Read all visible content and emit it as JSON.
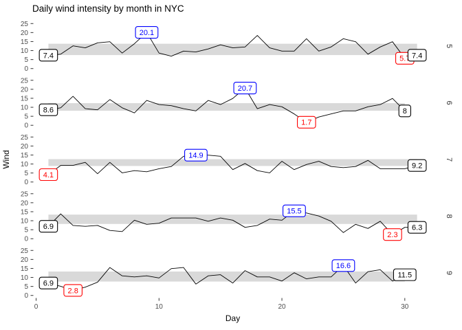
{
  "title": "Daily wind intensity by month in NYC",
  "x_axis": {
    "label": "Day",
    "ticks": [
      0,
      10,
      20,
      30
    ]
  },
  "y_axis": {
    "label": "Wind",
    "ticks": [
      0,
      5,
      10,
      15,
      20,
      25
    ]
  },
  "colors": {
    "line": "#000000",
    "band": "#d9d9d9",
    "axis_text": "#4d4d4d",
    "tick_mark": "#333333",
    "strip_text": "#333333",
    "label_first_last": "#000000",
    "label_max": "#0000ff",
    "label_min": "#ff0000",
    "label_fill": "#ffffff",
    "background": "#ffffff"
  },
  "chart_data": {
    "type": "line",
    "title": "Daily wind intensity by month in NYC",
    "xlabel": "Day",
    "ylabel": "Wind",
    "ylim": [
      0,
      25
    ],
    "x_ticks": [
      0,
      10,
      20,
      30
    ],
    "y_ticks": [
      25,
      20,
      15,
      10,
      5,
      0
    ],
    "grid": false,
    "facets": [
      {
        "strip": "5",
        "values": [
          7.4,
          8.0,
          12.6,
          11.5,
          14.3,
          14.9,
          8.6,
          13.8,
          20.1,
          8.6,
          6.9,
          9.7,
          9.2,
          10.9,
          13.2,
          11.5,
          12.0,
          18.4,
          11.5,
          9.7,
          9.7,
          16.6,
          9.7,
          12.0,
          16.6,
          14.9,
          8.0,
          12.0,
          14.9,
          5.7,
          7.4
        ],
        "band": {
          "ymin": 7.5,
          "ymax": 13.8
        },
        "labels": [
          {
            "text": "7.4",
            "day": 1,
            "value": 7.4,
            "role": "first",
            "color": "black"
          },
          {
            "text": "5.7",
            "day": 30,
            "value": 5.7,
            "role": "min",
            "color": "red"
          },
          {
            "text": "20.1",
            "day": 9,
            "value": 20.1,
            "role": "max",
            "color": "blue"
          },
          {
            "text": "7.4",
            "day": 31,
            "value": 7.4,
            "role": "last",
            "color": "black"
          }
        ]
      },
      {
        "strip": "6",
        "values": [
          8.6,
          9.7,
          16.1,
          9.2,
          8.6,
          14.3,
          9.7,
          6.9,
          13.8,
          11.5,
          10.9,
          9.2,
          8.0,
          13.8,
          11.5,
          14.9,
          20.7,
          9.2,
          11.5,
          10.3,
          6.3,
          1.7,
          4.6,
          6.3,
          8.0,
          8.0,
          10.3,
          11.5,
          14.9,
          8.0
        ],
        "band": {
          "ymin": 8.1,
          "ymax": 12.3
        },
        "labels": [
          {
            "text": "8.6",
            "day": 1,
            "value": 8.6,
            "role": "first",
            "color": "black"
          },
          {
            "text": "1.7",
            "day": 22,
            "value": 1.7,
            "role": "min",
            "color": "red"
          },
          {
            "text": "20.7",
            "day": 17,
            "value": 20.7,
            "role": "max",
            "color": "blue"
          },
          {
            "text": "8",
            "day": 30,
            "value": 8.0,
            "role": "last",
            "color": "black"
          }
        ]
      },
      {
        "strip": "7",
        "values": [
          4.1,
          9.2,
          9.2,
          10.9,
          4.6,
          10.9,
          5.1,
          6.3,
          5.7,
          7.4,
          8.6,
          14.3,
          14.9,
          14.9,
          14.3,
          6.9,
          10.3,
          6.3,
          5.1,
          11.5,
          6.9,
          9.7,
          11.5,
          8.6,
          8.0,
          8.6,
          12.0,
          7.4,
          7.4,
          7.4,
          9.2
        ],
        "band": {
          "ymin": 8.9,
          "ymax": 12.7
        },
        "labels": [
          {
            "text": "4.1",
            "day": 1,
            "value": 4.1,
            "role": "min",
            "color": "red"
          },
          {
            "text": "14.9",
            "day": 13,
            "value": 14.9,
            "role": "max",
            "color": "blue"
          },
          {
            "text": "9.2",
            "day": 31,
            "value": 9.2,
            "role": "last",
            "color": "black"
          }
        ]
      },
      {
        "strip": "8",
        "values": [
          6.9,
          13.8,
          7.4,
          6.9,
          7.4,
          4.6,
          4.0,
          10.3,
          8.0,
          8.6,
          11.5,
          11.5,
          11.5,
          9.7,
          11.5,
          10.3,
          6.3,
          7.4,
          10.9,
          10.3,
          15.5,
          14.3,
          12.6,
          9.7,
          3.4,
          8.0,
          5.7,
          9.7,
          2.3,
          6.3,
          6.3
        ],
        "band": {
          "ymin": 8.2,
          "ymax": 13.4
        },
        "labels": [
          {
            "text": "6.9",
            "day": 1,
            "value": 6.9,
            "role": "first",
            "color": "black"
          },
          {
            "text": "2.3",
            "day": 29,
            "value": 2.3,
            "role": "min",
            "color": "red"
          },
          {
            "text": "15.5",
            "day": 21,
            "value": 15.5,
            "role": "max",
            "color": "blue"
          },
          {
            "text": "6.3",
            "day": 31,
            "value": 6.3,
            "role": "last",
            "color": "black"
          }
        ]
      },
      {
        "strip": "9",
        "values": [
          6.9,
          5.1,
          2.8,
          4.6,
          7.4,
          15.5,
          10.9,
          10.3,
          10.9,
          9.7,
          14.9,
          15.5,
          6.3,
          10.9,
          11.5,
          6.9,
          13.8,
          10.3,
          10.3,
          8.0,
          12.6,
          9.2,
          10.3,
          10.3,
          16.6,
          6.9,
          13.2,
          14.3,
          8.0,
          11.5
        ],
        "band": {
          "ymin": 7.7,
          "ymax": 13.3
        },
        "labels": [
          {
            "text": "6.9",
            "day": 1,
            "value": 6.9,
            "role": "first",
            "color": "black"
          },
          {
            "text": "2.8",
            "day": 3,
            "value": 2.8,
            "role": "min",
            "color": "red"
          },
          {
            "text": "16.6",
            "day": 25,
            "value": 16.6,
            "role": "max",
            "color": "blue"
          },
          {
            "text": "11.5",
            "day": 30,
            "value": 11.5,
            "role": "last",
            "color": "black"
          }
        ]
      }
    ]
  }
}
